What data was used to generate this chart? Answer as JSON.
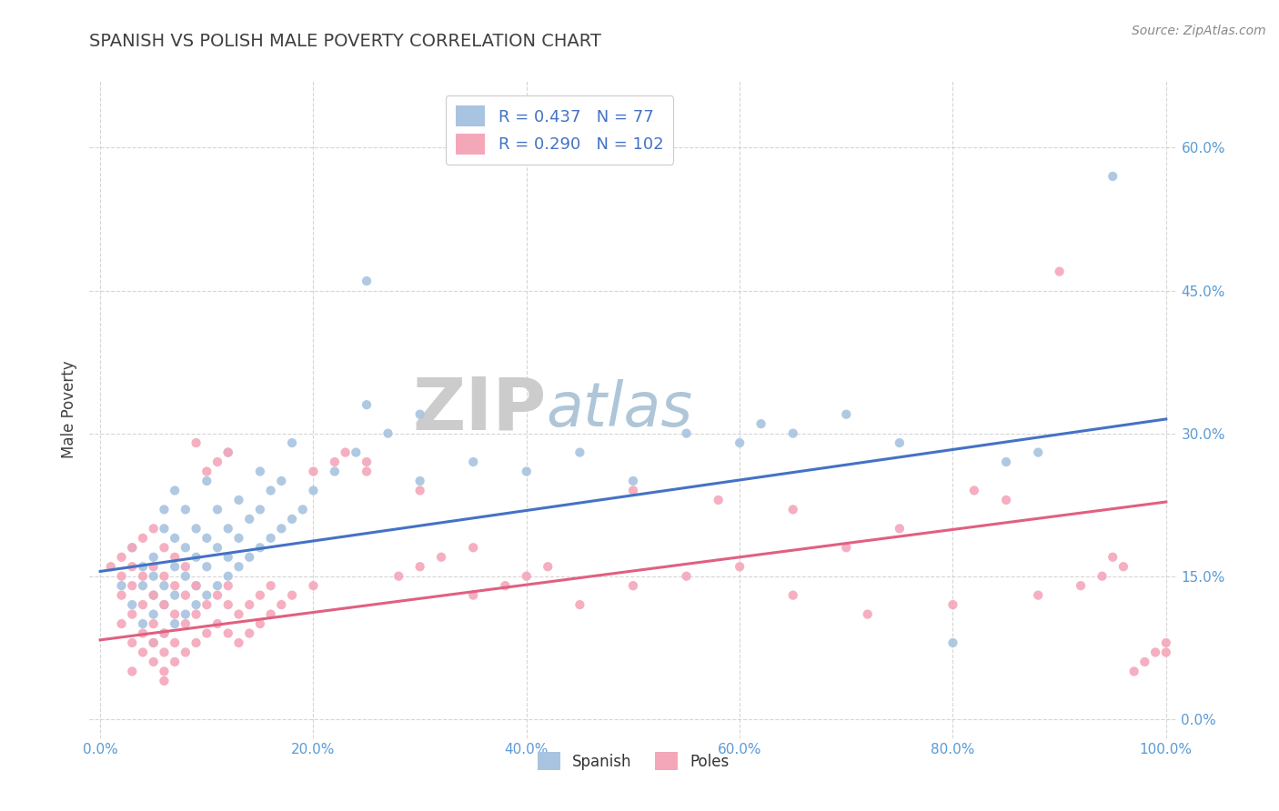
{
  "title": "SPANISH VS POLISH MALE POVERTY CORRELATION CHART",
  "source": "Source: ZipAtlas.com",
  "xlabel": "",
  "ylabel": "Male Poverty",
  "xlim": [
    -0.01,
    1.01
  ],
  "ylim": [
    -0.02,
    0.67
  ],
  "xticks": [
    0.0,
    0.2,
    0.4,
    0.6,
    0.8,
    1.0
  ],
  "xtick_labels": [
    "0.0%",
    "20.0%",
    "40.0%",
    "60.0%",
    "80.0%",
    "100.0%"
  ],
  "yticks": [
    0.0,
    0.15,
    0.3,
    0.45,
    0.6
  ],
  "ytick_labels": [
    "0.0%",
    "15.0%",
    "30.0%",
    "45.0%",
    "60.0%"
  ],
  "spanish_R": 0.437,
  "spanish_N": 77,
  "poles_R": 0.29,
  "poles_N": 102,
  "spanish_color": "#a8c4e0",
  "poles_color": "#f4a7b9",
  "spanish_line_color": "#4472c4",
  "poles_line_color": "#e06080",
  "legend_text_color": "#4472c4",
  "watermark_ZIP_color": "#cccccc",
  "watermark_atlas_color": "#aec6d8",
  "title_color": "#404040",
  "tick_color": "#5b9bd5",
  "grid_color": "#cccccc",
  "spanish_points": [
    [
      0.02,
      0.14
    ],
    [
      0.03,
      0.12
    ],
    [
      0.03,
      0.18
    ],
    [
      0.04,
      0.1
    ],
    [
      0.04,
      0.14
    ],
    [
      0.04,
      0.16
    ],
    [
      0.05,
      0.08
    ],
    [
      0.05,
      0.11
    ],
    [
      0.05,
      0.13
    ],
    [
      0.05,
      0.15
    ],
    [
      0.05,
      0.17
    ],
    [
      0.06,
      0.09
    ],
    [
      0.06,
      0.12
    ],
    [
      0.06,
      0.14
    ],
    [
      0.06,
      0.2
    ],
    [
      0.06,
      0.22
    ],
    [
      0.07,
      0.1
    ],
    [
      0.07,
      0.13
    ],
    [
      0.07,
      0.16
    ],
    [
      0.07,
      0.19
    ],
    [
      0.07,
      0.24
    ],
    [
      0.08,
      0.11
    ],
    [
      0.08,
      0.15
    ],
    [
      0.08,
      0.18
    ],
    [
      0.08,
      0.22
    ],
    [
      0.09,
      0.12
    ],
    [
      0.09,
      0.14
    ],
    [
      0.09,
      0.17
    ],
    [
      0.09,
      0.2
    ],
    [
      0.1,
      0.13
    ],
    [
      0.1,
      0.16
    ],
    [
      0.1,
      0.19
    ],
    [
      0.1,
      0.25
    ],
    [
      0.11,
      0.14
    ],
    [
      0.11,
      0.18
    ],
    [
      0.11,
      0.22
    ],
    [
      0.12,
      0.15
    ],
    [
      0.12,
      0.17
    ],
    [
      0.12,
      0.2
    ],
    [
      0.12,
      0.28
    ],
    [
      0.13,
      0.16
    ],
    [
      0.13,
      0.19
    ],
    [
      0.13,
      0.23
    ],
    [
      0.14,
      0.17
    ],
    [
      0.14,
      0.21
    ],
    [
      0.15,
      0.18
    ],
    [
      0.15,
      0.22
    ],
    [
      0.15,
      0.26
    ],
    [
      0.16,
      0.19
    ],
    [
      0.16,
      0.24
    ],
    [
      0.17,
      0.2
    ],
    [
      0.17,
      0.25
    ],
    [
      0.18,
      0.21
    ],
    [
      0.18,
      0.29
    ],
    [
      0.19,
      0.22
    ],
    [
      0.2,
      0.24
    ],
    [
      0.22,
      0.26
    ],
    [
      0.24,
      0.28
    ],
    [
      0.25,
      0.33
    ],
    [
      0.25,
      0.46
    ],
    [
      0.27,
      0.3
    ],
    [
      0.3,
      0.25
    ],
    [
      0.3,
      0.32
    ],
    [
      0.35,
      0.27
    ],
    [
      0.4,
      0.26
    ],
    [
      0.45,
      0.28
    ],
    [
      0.5,
      0.25
    ],
    [
      0.55,
      0.3
    ],
    [
      0.6,
      0.29
    ],
    [
      0.62,
      0.31
    ],
    [
      0.65,
      0.3
    ],
    [
      0.7,
      0.32
    ],
    [
      0.75,
      0.29
    ],
    [
      0.8,
      0.08
    ],
    [
      0.85,
      0.27
    ],
    [
      0.88,
      0.28
    ],
    [
      0.95,
      0.57
    ]
  ],
  "poles_points": [
    [
      0.01,
      0.16
    ],
    [
      0.02,
      0.1
    ],
    [
      0.02,
      0.13
    ],
    [
      0.02,
      0.15
    ],
    [
      0.02,
      0.17
    ],
    [
      0.03,
      0.08
    ],
    [
      0.03,
      0.11
    ],
    [
      0.03,
      0.14
    ],
    [
      0.03,
      0.16
    ],
    [
      0.03,
      0.18
    ],
    [
      0.04,
      0.07
    ],
    [
      0.04,
      0.09
    ],
    [
      0.04,
      0.12
    ],
    [
      0.04,
      0.15
    ],
    [
      0.04,
      0.19
    ],
    [
      0.05,
      0.06
    ],
    [
      0.05,
      0.08
    ],
    [
      0.05,
      0.1
    ],
    [
      0.05,
      0.13
    ],
    [
      0.05,
      0.16
    ],
    [
      0.05,
      0.2
    ],
    [
      0.06,
      0.05
    ],
    [
      0.06,
      0.07
    ],
    [
      0.06,
      0.09
    ],
    [
      0.06,
      0.12
    ],
    [
      0.06,
      0.15
    ],
    [
      0.06,
      0.18
    ],
    [
      0.07,
      0.06
    ],
    [
      0.07,
      0.08
    ],
    [
      0.07,
      0.11
    ],
    [
      0.07,
      0.14
    ],
    [
      0.07,
      0.17
    ],
    [
      0.08,
      0.07
    ],
    [
      0.08,
      0.1
    ],
    [
      0.08,
      0.13
    ],
    [
      0.08,
      0.16
    ],
    [
      0.09,
      0.08
    ],
    [
      0.09,
      0.11
    ],
    [
      0.09,
      0.14
    ],
    [
      0.09,
      0.29
    ],
    [
      0.1,
      0.09
    ],
    [
      0.1,
      0.12
    ],
    [
      0.1,
      0.26
    ],
    [
      0.11,
      0.1
    ],
    [
      0.11,
      0.13
    ],
    [
      0.11,
      0.27
    ],
    [
      0.12,
      0.09
    ],
    [
      0.12,
      0.12
    ],
    [
      0.12,
      0.14
    ],
    [
      0.12,
      0.28
    ],
    [
      0.13,
      0.08
    ],
    [
      0.13,
      0.11
    ],
    [
      0.14,
      0.09
    ],
    [
      0.14,
      0.12
    ],
    [
      0.15,
      0.1
    ],
    [
      0.15,
      0.13
    ],
    [
      0.16,
      0.11
    ],
    [
      0.16,
      0.14
    ],
    [
      0.17,
      0.12
    ],
    [
      0.18,
      0.13
    ],
    [
      0.2,
      0.14
    ],
    [
      0.2,
      0.26
    ],
    [
      0.22,
      0.27
    ],
    [
      0.23,
      0.28
    ],
    [
      0.25,
      0.26
    ],
    [
      0.25,
      0.27
    ],
    [
      0.28,
      0.15
    ],
    [
      0.3,
      0.16
    ],
    [
      0.3,
      0.24
    ],
    [
      0.32,
      0.17
    ],
    [
      0.35,
      0.13
    ],
    [
      0.35,
      0.18
    ],
    [
      0.38,
      0.14
    ],
    [
      0.4,
      0.15
    ],
    [
      0.42,
      0.16
    ],
    [
      0.45,
      0.12
    ],
    [
      0.5,
      0.14
    ],
    [
      0.5,
      0.24
    ],
    [
      0.55,
      0.15
    ],
    [
      0.58,
      0.23
    ],
    [
      0.6,
      0.16
    ],
    [
      0.65,
      0.13
    ],
    [
      0.65,
      0.22
    ],
    [
      0.7,
      0.18
    ],
    [
      0.72,
      0.11
    ],
    [
      0.75,
      0.2
    ],
    [
      0.8,
      0.12
    ],
    [
      0.82,
      0.24
    ],
    [
      0.85,
      0.23
    ],
    [
      0.88,
      0.13
    ],
    [
      0.9,
      0.47
    ],
    [
      0.92,
      0.14
    ],
    [
      0.94,
      0.15
    ],
    [
      0.95,
      0.17
    ],
    [
      0.96,
      0.16
    ],
    [
      0.97,
      0.05
    ],
    [
      0.98,
      0.06
    ],
    [
      0.99,
      0.07
    ],
    [
      1.0,
      0.07
    ],
    [
      1.0,
      0.08
    ],
    [
      0.03,
      0.05
    ],
    [
      0.06,
      0.04
    ]
  ],
  "spanish_line_x": [
    0.0,
    1.0
  ],
  "spanish_line_y": [
    0.155,
    0.315
  ],
  "poles_line_x": [
    0.0,
    1.0
  ],
  "poles_line_y": [
    0.083,
    0.228
  ],
  "bottom_legend_labels": [
    "Spanish",
    "Poles"
  ]
}
